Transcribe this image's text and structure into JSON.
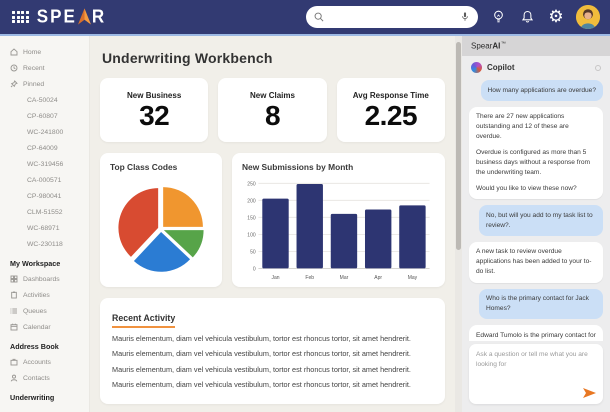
{
  "navbar": {
    "logo_prefix": "SPE",
    "logo_suffix": "R",
    "search_placeholder": ""
  },
  "sidebar": {
    "nav_top": [
      {
        "label": "Home",
        "icon": "home-icon"
      },
      {
        "label": "Recent",
        "icon": "clock-icon"
      },
      {
        "label": "Pinned",
        "icon": "pin-icon"
      }
    ],
    "pinned_cases": [
      "CA-50024",
      "CP-60807",
      "WC-241800",
      "CP-64009",
      "WC-319456",
      "CA-000571",
      "CP-980041",
      "CLM-51552",
      "WC-68971",
      "WC-230118"
    ],
    "sections": [
      {
        "header": "My Workspace",
        "items": [
          {
            "label": "Dashboards",
            "icon": "dashboards-icon"
          },
          {
            "label": "Activities",
            "icon": "clipboard-icon"
          },
          {
            "label": "Queues",
            "icon": "list-icon"
          },
          {
            "label": "Calendar",
            "icon": "calendar-icon"
          }
        ]
      },
      {
        "header": "Address Book",
        "items": [
          {
            "label": "Accounts",
            "icon": "briefcase-icon"
          },
          {
            "label": "Contacts",
            "icon": "person-icon"
          }
        ]
      },
      {
        "header": "Underwriting",
        "items": []
      }
    ]
  },
  "main": {
    "title": "Underwriting Workbench",
    "kpis": [
      {
        "label": "New Business",
        "value": "32"
      },
      {
        "label": "New Claims",
        "value": "8"
      },
      {
        "label": "Avg Response Time",
        "value": "2.25"
      }
    ],
    "recent_activity": {
      "title": "Recent Activity",
      "rows": [
        "Mauris elementum, diam vel vehicula vestibulum, tortor est rhoncus tortor, sit amet hendrerit.",
        "Mauris elementum, diam vel vehicula vestibulum, tortor est rhoncus tortor, sit amet hendrerit.",
        "Mauris elementum, diam vel vehicula vestibulum, tortor est rhoncus tortor, sit amet hendrerit.",
        "Mauris elementum, diam vel vehicula vestibulum, tortor est rhoncus tortor, sit amet hendrerit."
      ]
    }
  },
  "chart_data": [
    {
      "type": "pie",
      "title": "Top Class Codes",
      "segments": [
        {
          "value": 25,
          "color": "#f0962f"
        },
        {
          "value": 12,
          "color": "#57a449"
        },
        {
          "value": 25,
          "color": "#2b7cd3"
        },
        {
          "value": 38,
          "color": "#d84b31"
        }
      ],
      "start_angle_deg": -90,
      "legend": false
    },
    {
      "type": "bar",
      "title": "New Submissions by Month",
      "categories": [
        "Jan",
        "Feb",
        "Mar",
        "Apr",
        "May"
      ],
      "values": [
        205,
        248,
        160,
        173,
        185
      ],
      "ylim": [
        0,
        250
      ],
      "yticks": [
        0,
        50,
        100,
        150,
        200,
        250
      ],
      "bar_color": "#2d3572",
      "grid": true,
      "xlabel": "",
      "ylabel": ""
    }
  ],
  "copilot": {
    "title_prefix": "Spear",
    "title_bold": "AI",
    "title_tm": "™",
    "assistant_name": "Copilot",
    "messages": [
      {
        "role": "user",
        "paragraphs": [
          "How many applications are overdue?"
        ]
      },
      {
        "role": "assistant",
        "paragraphs": [
          "There are 27 new applications outstanding and 12 of these are overdue.",
          "Overdue is configured as more than 5 business days without a response from the underwriting team.",
          "Would you like to view these now?"
        ]
      },
      {
        "role": "user",
        "paragraphs": [
          "No, but will you add to my task list to review?."
        ]
      },
      {
        "role": "assistant",
        "paragraphs": [
          "A new task to review overdue applications has been added to your to-do list."
        ]
      },
      {
        "role": "user",
        "paragraphs": [
          "Who is the primary contact for Jack Homes?"
        ]
      },
      {
        "role": "assistant",
        "paragraphs": [
          "Edward Tumolo is the primary contact for Jack Homes of South Carolina and can be reached at (555) 658-9851.",
          "You can email tumolo@jacksmith.biz"
        ]
      }
    ],
    "input_placeholder": "Ask a question or tell me what you are looking for"
  }
}
